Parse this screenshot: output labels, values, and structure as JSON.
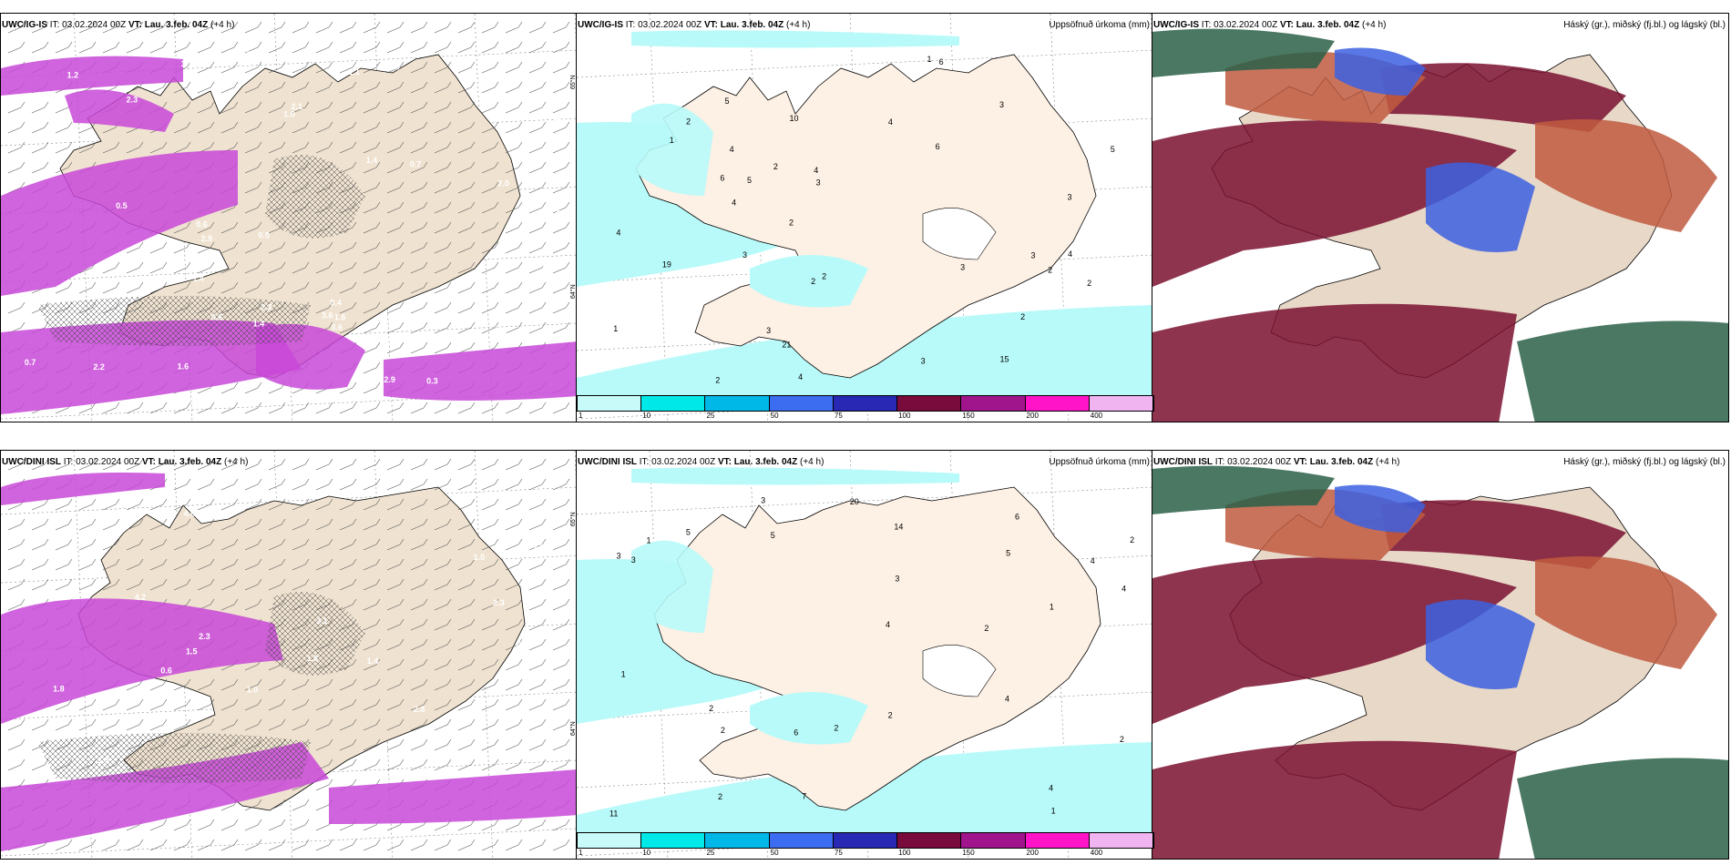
{
  "panels": {
    "p1": {
      "model": "UWC/IG-IS",
      "it_label": "IT:",
      "it": "03.02.2024 00Z",
      "vt_label": "VT:",
      "vt": "Lau. 3.feb. 04Z",
      "lead": "(+4 h)",
      "right_title": ""
    },
    "p2": {
      "model": "UWC/IG-IS",
      "it_label": "IT:",
      "it": "03.02.2024 00Z",
      "vt_label": "VT:",
      "vt": "Lau. 3.feb. 04Z",
      "lead": "(+4 h)",
      "right_title": "Uppsöfnuð úrkoma (mm)"
    },
    "p3": {
      "model": "UWC/IG-IS",
      "it_label": "IT:",
      "it": "03.02.2024 00Z",
      "vt_label": "VT:",
      "vt": "Lau. 3.feb. 04Z",
      "lead": "(+4 h)",
      "right_title": "Háský (gr.), miðský (fj.bl.) og lágský (bl.)"
    },
    "p4": {
      "model": "UWC/DINI ISL",
      "it_label": "IT:",
      "it": "03.02.2024 00Z",
      "vt_label": "VT:",
      "vt": "Lau. 3.feb. 04Z",
      "lead": "(+4 h)",
      "right_title": ""
    },
    "p5": {
      "model": "UWC/DINI ISL",
      "it_label": "IT:",
      "it": "03.02.2024 00Z",
      "vt_label": "VT:",
      "vt": "Lau. 3.feb. 04Z",
      "lead": "(+4 h)",
      "right_title": "Uppsöfnuð úrkoma (mm)"
    },
    "p6": {
      "model": "UWC/DINI ISL",
      "it_label": "IT:",
      "it": "03.02.2024 00Z",
      "vt_label": "VT:",
      "vt": "Lau. 3.feb. 04Z",
      "lead": "(+4 h)",
      "right_title": "Háský (gr.), miðský (fj.bl.) og lágský (bl.)"
    }
  },
  "colorbar": {
    "ticks": [
      "1",
      "10",
      "25",
      "50",
      "75",
      "100",
      "150",
      "200",
      "400"
    ],
    "colors": [
      "#c8fafa",
      "#00e8e8",
      "#00b8e8",
      "#3c6cf0",
      "#2828b4",
      "#780a3c",
      "#a0148c",
      "#ff14c8",
      "#f0b4f0"
    ]
  },
  "lat_labels": [
    "65°N",
    "64°N"
  ],
  "labels": {
    "p1": [
      "0.7",
      "1.6",
      "1.6",
      "0.5",
      "1.0",
      "0.7",
      "1.5",
      "0.4",
      "1.1",
      "1.5",
      "0.7",
      "0.3",
      "0.7",
      "2.3",
      "1.6",
      "0.5",
      "0.6",
      "2.0",
      "3.6",
      "2.2",
      "2.2",
      "1.0",
      "1.3",
      "0.6",
      "1.1",
      "3.3",
      "2.9",
      "1.4",
      "1.2",
      "1.4",
      "2.0",
      "2.1",
      "1.7",
      "2.9",
      "3.6",
      "1.6",
      "1.8",
      "1.4"
    ],
    "p2": [
      "15",
      "19",
      "21",
      "2",
      "1",
      "3",
      "2",
      "3",
      "2",
      "4",
      "5",
      "6",
      "3",
      "4",
      "2",
      "1",
      "3",
      "2",
      "4",
      "3",
      "1",
      "2",
      "4",
      "5",
      "2",
      "4",
      "3",
      "4",
      "2",
      "3",
      "5",
      "6",
      "6",
      "10",
      "3",
      "4",
      "2"
    ],
    "p4": [
      "3.9",
      "4.2",
      "1.0",
      "2.3",
      "3.1",
      "1.4",
      "0.8",
      "2.3",
      "4.0",
      "1.8",
      "1.8",
      "2.8",
      "1.4",
      "1.0",
      "0.6",
      "1.5",
      "1.3"
    ],
    "p5": [
      "20",
      "14",
      "2",
      "2",
      "2",
      "2",
      "7",
      "4",
      "3",
      "5",
      "4",
      "3",
      "6",
      "4",
      "3",
      "1",
      "2",
      "1",
      "1",
      "1",
      "3",
      "2",
      "5",
      "4",
      "2",
      "11",
      "4",
      "6",
      "5",
      "2"
    ]
  }
}
